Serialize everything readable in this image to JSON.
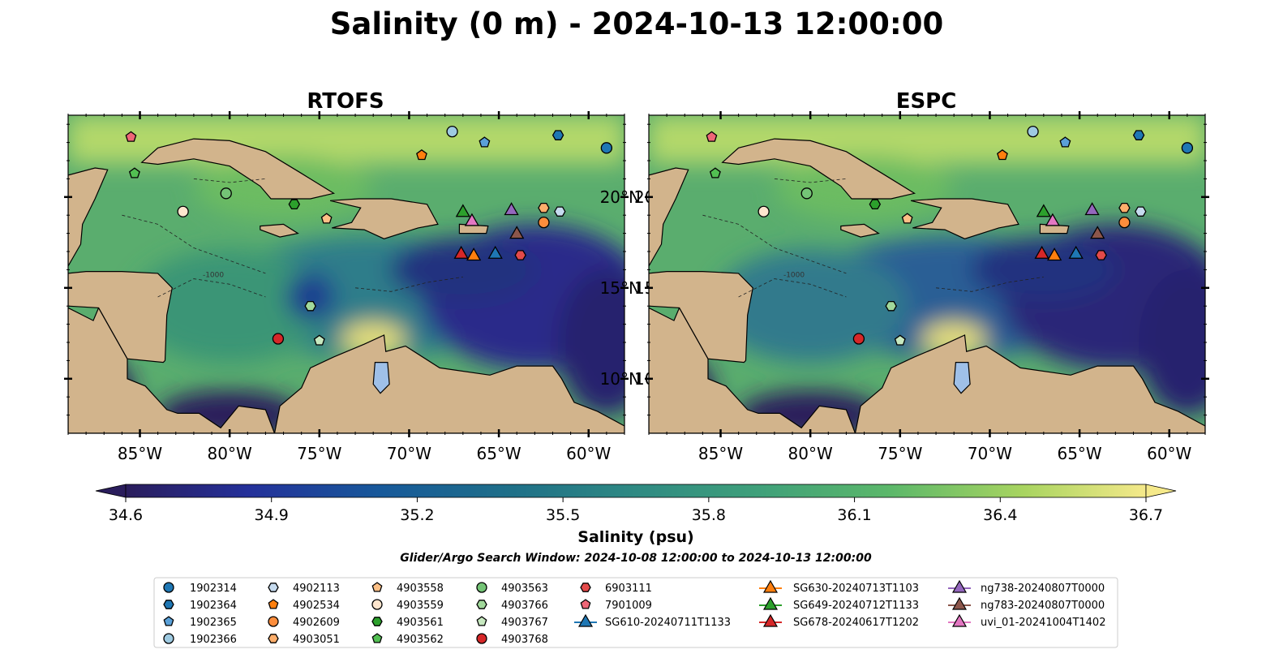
{
  "figure": {
    "title": "Salinity (0 m) - 2024-10-13 12:00:00",
    "subtitle": "Glider/Argo Search Window: 2024-10-08 12:00:00 to 2024-10-13 12:00:00"
  },
  "panels": [
    {
      "title": "RTOFS"
    },
    {
      "title": "ESPC"
    }
  ],
  "map": {
    "lon_range": [
      -89,
      -58
    ],
    "lat_range": [
      7,
      24.5
    ],
    "lon_ticks": [
      -85,
      -80,
      -75,
      -70,
      -65,
      -60
    ],
    "lon_tick_labels": [
      "85°W",
      "80°W",
      "75°W",
      "70°W",
      "65°W",
      "60°W"
    ],
    "lat_ticks": [
      10,
      15,
      20
    ],
    "lat_tick_labels": [
      "10°N",
      "15°N",
      "20°N"
    ],
    "land_color": "#d2b48c",
    "lake_color": "#9fc0e8",
    "contour_label": "-1000"
  },
  "colorbar": {
    "label": "Salinity (psu)",
    "min": 34.6,
    "max": 36.7,
    "ticks": [
      "34.6",
      "34.9",
      "35.2",
      "35.5",
      "35.8",
      "36.1",
      "36.4",
      "36.7"
    ],
    "colormap": "haline",
    "extend": "both"
  },
  "floats": [
    {
      "id": "1902314",
      "marker": "circle",
      "color": "#1f77b4",
      "lon": -59.0,
      "lat": 22.7
    },
    {
      "id": "1902364",
      "marker": "hexagon",
      "color": "#1f77b4",
      "lon": -61.7,
      "lat": 23.4
    },
    {
      "id": "1902365",
      "marker": "pentagon",
      "color": "#5aa0d8",
      "lon": -65.8,
      "lat": 23.0
    },
    {
      "id": "1902366",
      "marker": "circle",
      "color": "#9ecae1",
      "lon": -67.6,
      "lat": 23.6
    },
    {
      "id": "4902113",
      "marker": "hexagon",
      "color": "#c6dbef",
      "lon": -61.6,
      "lat": 19.2
    },
    {
      "id": "4902534",
      "marker": "pentagon",
      "color": "#ff7f0e",
      "lon": -69.3,
      "lat": 22.3
    },
    {
      "id": "4902609",
      "marker": "circle",
      "color": "#fd8d3c",
      "lon": -62.5,
      "lat": 18.6
    },
    {
      "id": "4903051",
      "marker": "hexagon",
      "color": "#fdae6b",
      "lon": -62.5,
      "lat": 19.4
    },
    {
      "id": "4903558",
      "marker": "pentagon",
      "color": "#fdc086",
      "lon": -74.6,
      "lat": 18.8
    },
    {
      "id": "4903559",
      "marker": "circle",
      "color": "#fee6ce",
      "lon": -82.6,
      "lat": 19.2
    },
    {
      "id": "4903561",
      "marker": "hexagon",
      "color": "#2ca02c",
      "lon": -76.4,
      "lat": 19.6
    },
    {
      "id": "4903562",
      "marker": "pentagon",
      "color": "#52bf52",
      "lon": -85.3,
      "lat": 21.3
    },
    {
      "id": "4903563",
      "marker": "circle",
      "color": "#74c476",
      "lon": -80.2,
      "lat": 20.2
    },
    {
      "id": "4903766",
      "marker": "hexagon",
      "color": "#a1d99b",
      "lon": -75.5,
      "lat": 14.0
    },
    {
      "id": "4903767",
      "marker": "pentagon",
      "color": "#c7e9c0",
      "lon": -75.0,
      "lat": 12.1
    },
    {
      "id": "4903768",
      "marker": "circle",
      "color": "#d62728",
      "lon": -77.3,
      "lat": 12.2
    },
    {
      "id": "6903111",
      "marker": "hexagon",
      "color": "#e34a4a",
      "lon": -63.8,
      "lat": 16.8
    },
    {
      "id": "7901009",
      "marker": "pentagon",
      "color": "#ee6677",
      "lon": -85.5,
      "lat": 23.3
    }
  ],
  "gliders": [
    {
      "id": "SG610-20240711T1133",
      "color": "#1f77b4",
      "lon": -65.2,
      "lat": 16.9
    },
    {
      "id": "SG630-20240713T1103",
      "color": "#ff7f0e",
      "lon": -66.4,
      "lat": 16.8
    },
    {
      "id": "SG649-20240712T1133",
      "color": "#2ca02c",
      "lon": -67.0,
      "lat": 19.2
    },
    {
      "id": "SG678-20240617T1202",
      "color": "#d62728",
      "lon": -67.1,
      "lat": 16.9
    },
    {
      "id": "ng738-20240807T0000",
      "color": "#9467bd",
      "lon": -64.3,
      "lat": 19.3
    },
    {
      "id": "ng783-20240807T0000",
      "color": "#8c564b",
      "lon": -64.0,
      "lat": 18.0
    },
    {
      "id": "uvi_01-20241004T1402",
      "color": "#e377c2",
      "lon": -66.5,
      "lat": 18.7
    }
  ]
}
